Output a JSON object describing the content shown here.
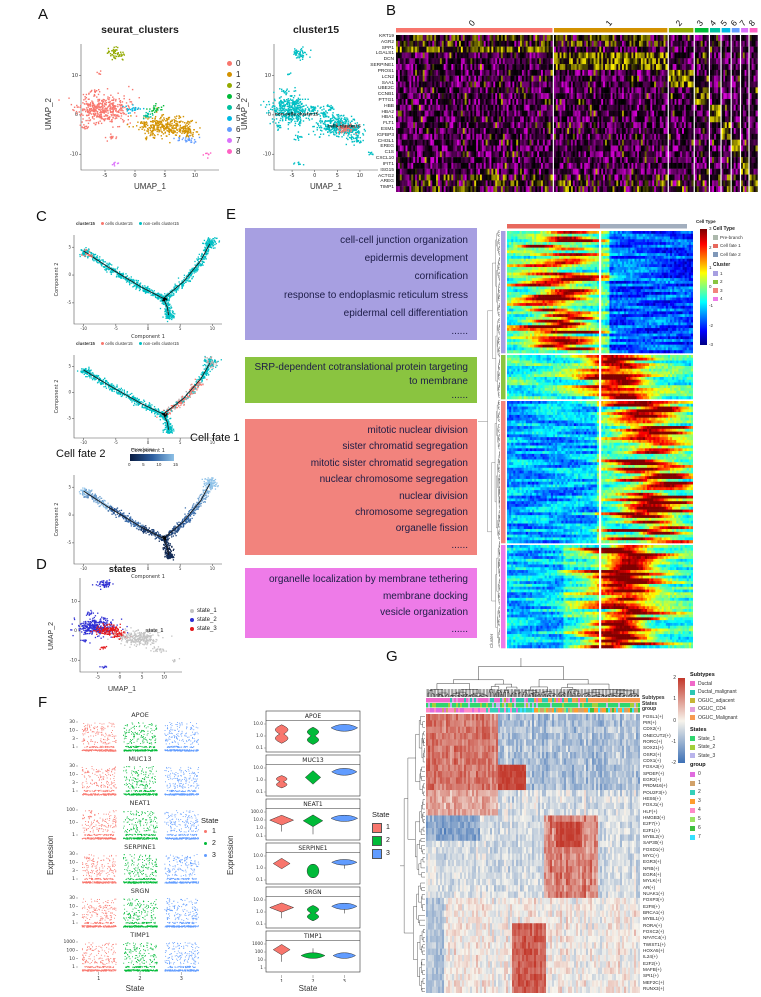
{
  "labels": {
    "A": "A",
    "B": "B",
    "C": "C",
    "D": "D",
    "E": "E",
    "F": "F",
    "G": "G"
  },
  "palette": {
    "seurat9": [
      "#F8766D",
      "#D39200",
      "#93AA00",
      "#00BA38",
      "#00C19F",
      "#00B9E3",
      "#619CFF",
      "#DB72FB",
      "#FF61C3"
    ],
    "state3_fill": [
      "#F8766D",
      "#00BA38",
      "#619CFF"
    ],
    "traj_cells": "#F8766D",
    "traj_noncells": "#00BFC4"
  },
  "chart_data": [
    {
      "panel": "A",
      "type": "scatter",
      "title": "seurat_clusters",
      "xlabel": "UMAP_1",
      "ylabel": "UMAP_2",
      "xticks": [
        -5,
        0,
        5,
        10
      ],
      "yticks": [
        -10,
        0,
        10
      ],
      "xlim": [
        -9,
        14
      ],
      "ylim": [
        -14,
        18
      ],
      "legend": {
        "items": [
          "0",
          "1",
          "2",
          "3",
          "4",
          "5",
          "6",
          "7",
          "8"
        ]
      },
      "blobs": [
        {
          "k": 0,
          "x": -5.5,
          "y": 1.5,
          "sx": 2.1,
          "sy": 1.7,
          "n": 420
        },
        {
          "k": 0,
          "x": -7.0,
          "y": 6.2,
          "sx": 0.5,
          "sy": 0.4,
          "n": 12
        },
        {
          "k": 0,
          "x": -8.2,
          "y": -3.0,
          "sx": 0.5,
          "sy": 0.4,
          "n": 10
        },
        {
          "k": 0,
          "x": -4.0,
          "y": -5.5,
          "sx": 0.5,
          "sy": 0.4,
          "n": 12
        },
        {
          "k": 0,
          "x": -6.0,
          "y": 10.8,
          "sx": 0.3,
          "sy": 0.25,
          "n": 5
        },
        {
          "k": 1,
          "x": 4.5,
          "y": -2.5,
          "sx": 2.2,
          "sy": 1.4,
          "n": 300
        },
        {
          "k": 1,
          "x": 8.0,
          "y": -3.8,
          "sx": 1.2,
          "sy": 0.8,
          "n": 80
        },
        {
          "k": 2,
          "x": -3.5,
          "y": 15.8,
          "sx": 0.8,
          "sy": 0.7,
          "n": 55
        },
        {
          "k": 3,
          "x": 3.2,
          "y": 1.8,
          "sx": 0.6,
          "sy": 0.5,
          "n": 24
        },
        {
          "k": 4,
          "x": 2.0,
          "y": 0.2,
          "sx": 0.5,
          "sy": 0.4,
          "n": 18
        },
        {
          "k": 5,
          "x": -0.6,
          "y": 1.6,
          "sx": 0.7,
          "sy": 0.5,
          "n": 26
        },
        {
          "k": 6,
          "x": 8.8,
          "y": -6.2,
          "sx": 0.9,
          "sy": 0.5,
          "n": 30
        },
        {
          "k": 7,
          "x": -3.6,
          "y": -12.2,
          "sx": 0.5,
          "sy": 0.25,
          "n": 8
        },
        {
          "k": 8,
          "x": 12.2,
          "y": -9.8,
          "sx": 0.4,
          "sy": 0.3,
          "n": 8
        }
      ]
    },
    {
      "panel": "A",
      "type": "scatter",
      "title": "cluster15",
      "xlabel": "UMAP_1",
      "ylabel": "UMAP_2",
      "xticks": [
        -5,
        0,
        5,
        10
      ],
      "yticks": [
        -10,
        0,
        10
      ],
      "xlim": [
        -9,
        14
      ],
      "ylim": [
        -14,
        18
      ],
      "cells_blob": {
        "x": 6.5,
        "y": -3.2,
        "sx": 0.9,
        "sy": 0.6,
        "n": 60
      },
      "annotations": [
        {
          "text": "non-cells cluster15",
          "x": -4,
          "y": 0
        },
        {
          "text": "cells cluster15",
          "x": 6.5,
          "y": -3.2
        }
      ]
    },
    {
      "panel": "B",
      "type": "heatmap",
      "genes": [
        "KRT19",
        "AGR2",
        "SPP1",
        "LGALS1",
        "DCN",
        "SERPINE1",
        "PROS1",
        "LCN2",
        "SAA1",
        "UBE2C",
        "CCNB1",
        "PTTG1",
        "HBB",
        "HBA2",
        "HBA1",
        "FLT1",
        "ESM1",
        "IGFBP3",
        "CHI3L1",
        "EREG",
        "C1S",
        "CXCL10",
        "IFIT1",
        "ISG15",
        "ACTG2",
        "AREG",
        "TIMP1"
      ],
      "groups": [
        "0",
        "1",
        "2",
        "3",
        "4",
        "5",
        "6",
        "7",
        "8"
      ],
      "group_fracs": [
        0.447,
        0.324,
        0.07,
        0.039,
        0.029,
        0.0246,
        0.0224,
        0.0201,
        0.0224
      ],
      "colormap": "magenta-black-yellow"
    },
    {
      "panel": "C",
      "type": "trajectory",
      "mode": "cluster",
      "legend": {
        "title": "cluster15",
        "items": [
          "cells cluster15",
          "non-cells cluster15"
        ]
      },
      "xlabel": "Component 1",
      "ylabel": "Component 2",
      "xticks": [
        -10,
        -5,
        0,
        5,
        10
      ],
      "yticks": [
        -5,
        0,
        5
      ]
    },
    {
      "panel": "C",
      "type": "trajectory",
      "mode": "fate",
      "legend": {
        "title": "cluster15",
        "items": [
          "cells cluster15",
          "non-cells cluster15"
        ]
      },
      "xlabel": "Component 1",
      "ylabel": "Component 2",
      "xticks": [
        -10,
        -5,
        0,
        5,
        10
      ],
      "yticks": [
        -5,
        0,
        5
      ],
      "caption": "Cell fate 1"
    },
    {
      "panel": "C",
      "type": "trajectory",
      "mode": "pseudotime",
      "xlabel": "Component 1",
      "ylabel": "Component 2",
      "xticks": [
        -10,
        -5,
        0,
        5,
        10
      ],
      "yticks": [
        -5,
        0,
        5
      ],
      "caption": "Cell fate 2",
      "colorbar": {
        "title": "Pseudotime",
        "ticks": [
          0,
          5,
          10,
          15
        ]
      }
    },
    {
      "panel": "D",
      "type": "scatter",
      "title": "states",
      "xlabel": "UMAP_1",
      "ylabel": "UMAP_2",
      "xticks": [
        -5,
        0,
        5,
        10
      ],
      "yticks": [
        10,
        0,
        -10
      ],
      "xlim": [
        -9,
        14
      ],
      "ylim": [
        -14,
        18
      ],
      "annotation": "state_1",
      "legend": {
        "items": [
          "state_1",
          "state_2",
          "state_3"
        ],
        "colors": [
          "#C3C3C3",
          "#2F2FD3",
          "#E4191C"
        ]
      },
      "blobs": [
        {
          "k": 1,
          "x": -5.5,
          "y": 1.5,
          "sx": 2.0,
          "sy": 1.6,
          "n": 320
        },
        {
          "k": 1,
          "x": -3.5,
          "y": 15.8,
          "sx": 0.8,
          "sy": 0.7,
          "n": 50
        },
        {
          "k": 1,
          "x": -7.0,
          "y": 6.2,
          "sx": 0.5,
          "sy": 0.4,
          "n": 12
        },
        {
          "k": 1,
          "x": -3.6,
          "y": -12.2,
          "sx": 0.5,
          "sy": 0.3,
          "n": 8
        },
        {
          "k": 1,
          "x": -8.2,
          "y": -3.0,
          "sx": 0.4,
          "sy": 0.3,
          "n": 8
        },
        {
          "k": 2,
          "x": -2.6,
          "y": 0.6,
          "sx": 1.3,
          "sy": 0.9,
          "n": 150
        },
        {
          "k": 2,
          "x": -0.2,
          "y": -1.2,
          "sx": 0.9,
          "sy": 0.6,
          "n": 50
        },
        {
          "k": 2,
          "x": -4.0,
          "y": -5.5,
          "sx": 0.5,
          "sy": 0.3,
          "n": 10
        },
        {
          "k": 0,
          "x": 4.2,
          "y": -2.2,
          "sx": 2.2,
          "sy": 1.3,
          "n": 260
        },
        {
          "k": 0,
          "x": 8.8,
          "y": -6.2,
          "sx": 0.8,
          "sy": 0.5,
          "n": 24
        },
        {
          "k": 0,
          "x": 12.2,
          "y": -9.8,
          "sx": 0.4,
          "sy": 0.3,
          "n": 8
        }
      ]
    },
    {
      "panel": "E",
      "type": "go-branched-heatmap",
      "boxes": [
        {
          "color": "#A79FE1",
          "terms": [
            "cell-cell junction organization",
            "epidermis development",
            "cornification",
            "response to endoplasmic reticulum stress",
            "epidermal cell differentiation"
          ],
          "more": "......"
        },
        {
          "color": "#8AC440",
          "terms": [
            "SRP-dependent cotranslational protein targeting to membrane"
          ],
          "more": "......"
        },
        {
          "color": "#F2837D",
          "terms": [
            "mitotic nuclear division",
            "sister chromatid segregation",
            "mitotic sister chromatid segregation",
            "nuclear chromosome segregation",
            "nuclear division",
            "chromosome segregation",
            "organelle fission"
          ],
          "more": "......"
        },
        {
          "color": "#EE7BE8",
          "terms": [
            "organelle localization by membrane tethering",
            "membrane docking",
            "vesicle organization"
          ],
          "more": "......"
        }
      ],
      "colorbar": {
        "title": "Cell Type",
        "ticks": [
          "3",
          "2",
          "1",
          "0",
          "-1",
          "-2",
          "-3"
        ]
      },
      "celltype_legend": {
        "title": "Cell Type",
        "items": [
          "Pre-branch",
          "Cell fate 1",
          "Cell fate 2"
        ],
        "colors": [
          "#ACB8AC",
          "#E8685D",
          "#8098B8"
        ]
      },
      "cluster_legend": {
        "title": "Cluster",
        "items": [
          "1",
          "2",
          "3",
          "4"
        ],
        "colors": [
          "#A79FE1",
          "#8AC440",
          "#F2837D",
          "#EE7BE8"
        ]
      },
      "row_label": "Cluster",
      "block_fracs": [
        0.295,
        0.107,
        0.345,
        0.253
      ],
      "top_bar_colors": [
        "#E8685D",
        "#A2AEBE"
      ]
    },
    {
      "panel": "F",
      "type": "jitter",
      "genes": [
        "APOE",
        "MUC13",
        "NEAT1",
        "SERPINE1",
        "SRGN",
        "TIMP1"
      ],
      "yticks": [
        [
          "30",
          "10",
          "3",
          "1"
        ],
        [
          "30",
          "10",
          "3",
          "1"
        ],
        [
          "100",
          "10",
          "1"
        ],
        [
          "30",
          "10",
          "3",
          "1"
        ],
        [
          "30",
          "10",
          "3",
          "1"
        ],
        [
          "1000",
          "100",
          "10",
          "1"
        ]
      ],
      "ylabel": "Expression",
      "xlabel": "State",
      "states": [
        "1",
        "2",
        "3"
      ],
      "legend_title": "State"
    },
    {
      "panel": "F",
      "type": "violin",
      "genes": [
        "APOE",
        "MUC13",
        "NEAT1",
        "SERPINE1",
        "SRGN",
        "TIMP1"
      ],
      "yticks": [
        [
          "10.0",
          "1.0",
          "0.1"
        ],
        [
          "10.0",
          "1.0",
          "0.1"
        ],
        [
          "100.0",
          "10.0",
          "1.0",
          "0.1"
        ],
        [
          "10.0",
          "1.0",
          "0.1"
        ],
        [
          "10.0",
          "1.0",
          "0.1"
        ],
        [
          "1000",
          "100",
          "10",
          "1"
        ]
      ],
      "ylabel": "Expression",
      "xlabel": "State",
      "states": [
        "1",
        "2",
        "3"
      ],
      "legend_title": "State",
      "violins": [
        [
          [
            0.58,
            0.3,
            0.5,
            "h"
          ],
          [
            0.52,
            0.28,
            0.45,
            "h"
          ],
          [
            0.78,
            0.11,
            0.95,
            "f"
          ]
        ],
        [
          [
            0.46,
            0.2,
            0.42,
            "h"
          ],
          [
            0.6,
            0.22,
            0.55,
            "d"
          ],
          [
            0.78,
            0.11,
            0.9,
            "f"
          ]
        ],
        [
          [
            0.64,
            0.16,
            0.85,
            "dt"
          ],
          [
            0.62,
            0.19,
            0.7,
            "dt"
          ],
          [
            0.7,
            0.1,
            0.95,
            "f"
          ]
        ],
        [
          [
            0.66,
            0.17,
            0.6,
            "d"
          ],
          [
            0.42,
            0.22,
            0.42,
            "e"
          ],
          [
            0.7,
            0.09,
            0.9,
            "ft"
          ]
        ],
        [
          [
            0.66,
            0.15,
            0.85,
            "dt"
          ],
          [
            0.48,
            0.25,
            0.45,
            "h"
          ],
          [
            0.7,
            0.1,
            0.9,
            "ft"
          ]
        ],
        [
          [
            0.72,
            0.17,
            0.6,
            "dt"
          ],
          [
            0.53,
            0.09,
            0.85,
            "fs"
          ],
          [
            0.53,
            0.09,
            0.8,
            "f"
          ]
        ]
      ]
    },
    {
      "panel": "G",
      "type": "clustered-heatmap",
      "ann_labels": [
        "Subtypes",
        "States",
        "group"
      ],
      "colorbar_ticks": [
        "2",
        "1",
        "0",
        "-1",
        "-2"
      ],
      "row_labels": [
        "FOSL1(+)",
        "PIR(+)",
        "CDX2(+)",
        "ONECUT2(+)",
        "RORC(+)",
        "SOX21(+)",
        "OSR2(+)",
        "CDX1(+)",
        "FOXA3(+)",
        "SPDEF(+)",
        "EGR2(+)",
        "PRDM16(+)",
        "POU2F3(+)",
        "HES6(+)",
        "FOXJ1(+)",
        "HLF(+)",
        "HMGB3(+)",
        "E2F7(+)",
        "E2F1(+)",
        "MYBL2(+)",
        "SAP30(+)",
        "FOXD1(+)",
        "MYC(+)",
        "EGR3(+)",
        "NFIB(+)",
        "EGR4(+)",
        "MYLK(+)",
        "AR(+)",
        "NUAK1(+)",
        "FOXP3(+)",
        "E2F8(+)",
        "BRCA1(+)",
        "MYBL1(+)",
        "RORA(+)",
        "FOXC2(+)",
        "NFATC4(+)",
        "TWIST1(+)",
        "HOXA5(+)",
        "IL24(+)",
        "E2F2(+)",
        "MAFB(+)",
        "SPI1(+)",
        "MEF2C(+)",
        "RUNX3(+)"
      ],
      "legends": {
        "subtypes": {
          "title": "Subtypes",
          "items": [
            "Ductal",
            "Ductal_malignant",
            "OGUC_adjacent",
            "OGUC_CD4",
            "OGUC_Malignant"
          ],
          "colors": [
            "#F069C9",
            "#2DC7B2",
            "#C6B636",
            "#E3A0DC",
            "#F79A50"
          ]
        },
        "states": {
          "title": "States",
          "items": [
            "State_1",
            "State_2",
            "State_3"
          ],
          "colors": [
            "#2FD66E",
            "#A3CF3B",
            "#B9B4EC"
          ]
        },
        "group": {
          "title": "group",
          "items": [
            "0",
            "1",
            "2",
            "3",
            "4",
            "5",
            "6",
            "7"
          ],
          "colors": [
            "#E06BDF",
            "#D2A26A",
            "#35D0BA",
            "#FF9D2E",
            "#FF8AC8",
            "#9BE564",
            "#3FBF3F",
            "#33E0FF"
          ]
        }
      }
    }
  ]
}
